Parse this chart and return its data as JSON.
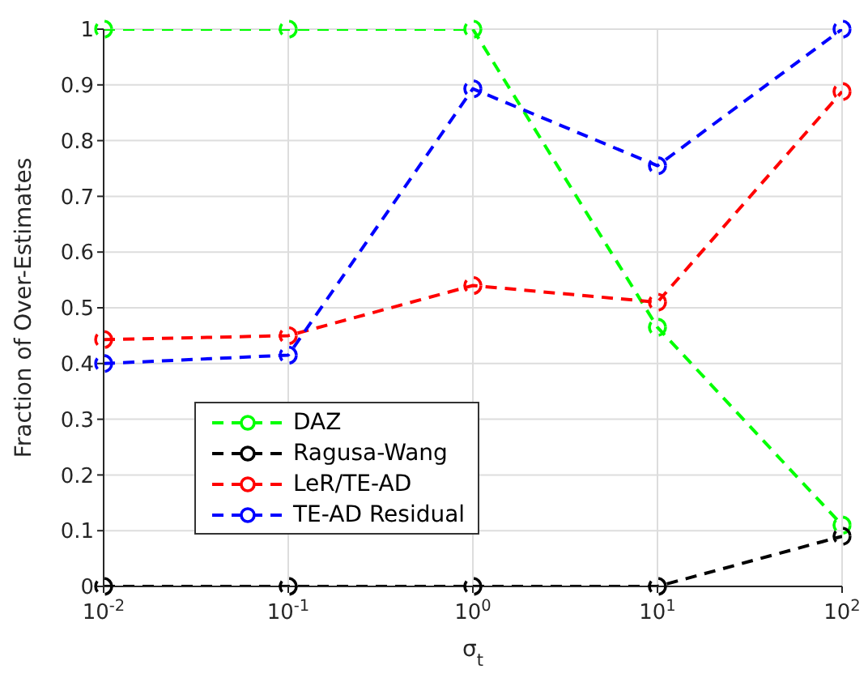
{
  "chart_data": {
    "type": "line",
    "xlabel": "σ$_{t}$",
    "ylabel": "Fraction of Over-Estimates",
    "x": [
      0.01,
      0.1,
      1,
      10,
      100
    ],
    "series": [
      {
        "name": "DAZ",
        "color": "#00ff00",
        "values": [
          1,
          1,
          1,
          0.465,
          0.11
        ]
      },
      {
        "name": "Ragusa-Wang",
        "color": "#000000",
        "values": [
          0,
          0,
          0,
          0,
          0.09
        ]
      },
      {
        "name": "LeR/TE-AD",
        "color": "#ff0000",
        "values": [
          0.443,
          0.45,
          0.54,
          0.51,
          0.888
        ]
      },
      {
        "name": "TE-AD Residual",
        "color": "#0000ff",
        "values": [
          0.4,
          0.415,
          0.893,
          0.755,
          1.0
        ]
      }
    ],
    "log": "x",
    "xlim": [
      0.01,
      100
    ],
    "xticks": [
      {
        "value": 0.01,
        "label": "10$^{-2}$"
      },
      {
        "value": 0.1,
        "label": "10$^{-1}$"
      },
      {
        "value": 1,
        "label": "10$^{0}$"
      },
      {
        "value": 10,
        "label": "10$^{1}$"
      },
      {
        "value": 100,
        "label": "10$^{2}$"
      }
    ],
    "ylim": [
      0,
      1
    ],
    "yticks": [
      0,
      0.1,
      0.2,
      0.3,
      0.4,
      0.5,
      0.6,
      0.7,
      0.8,
      0.9,
      1
    ],
    "grid": true,
    "legend": "bottom left",
    "marker": "circle",
    "line_style": "dashed"
  }
}
